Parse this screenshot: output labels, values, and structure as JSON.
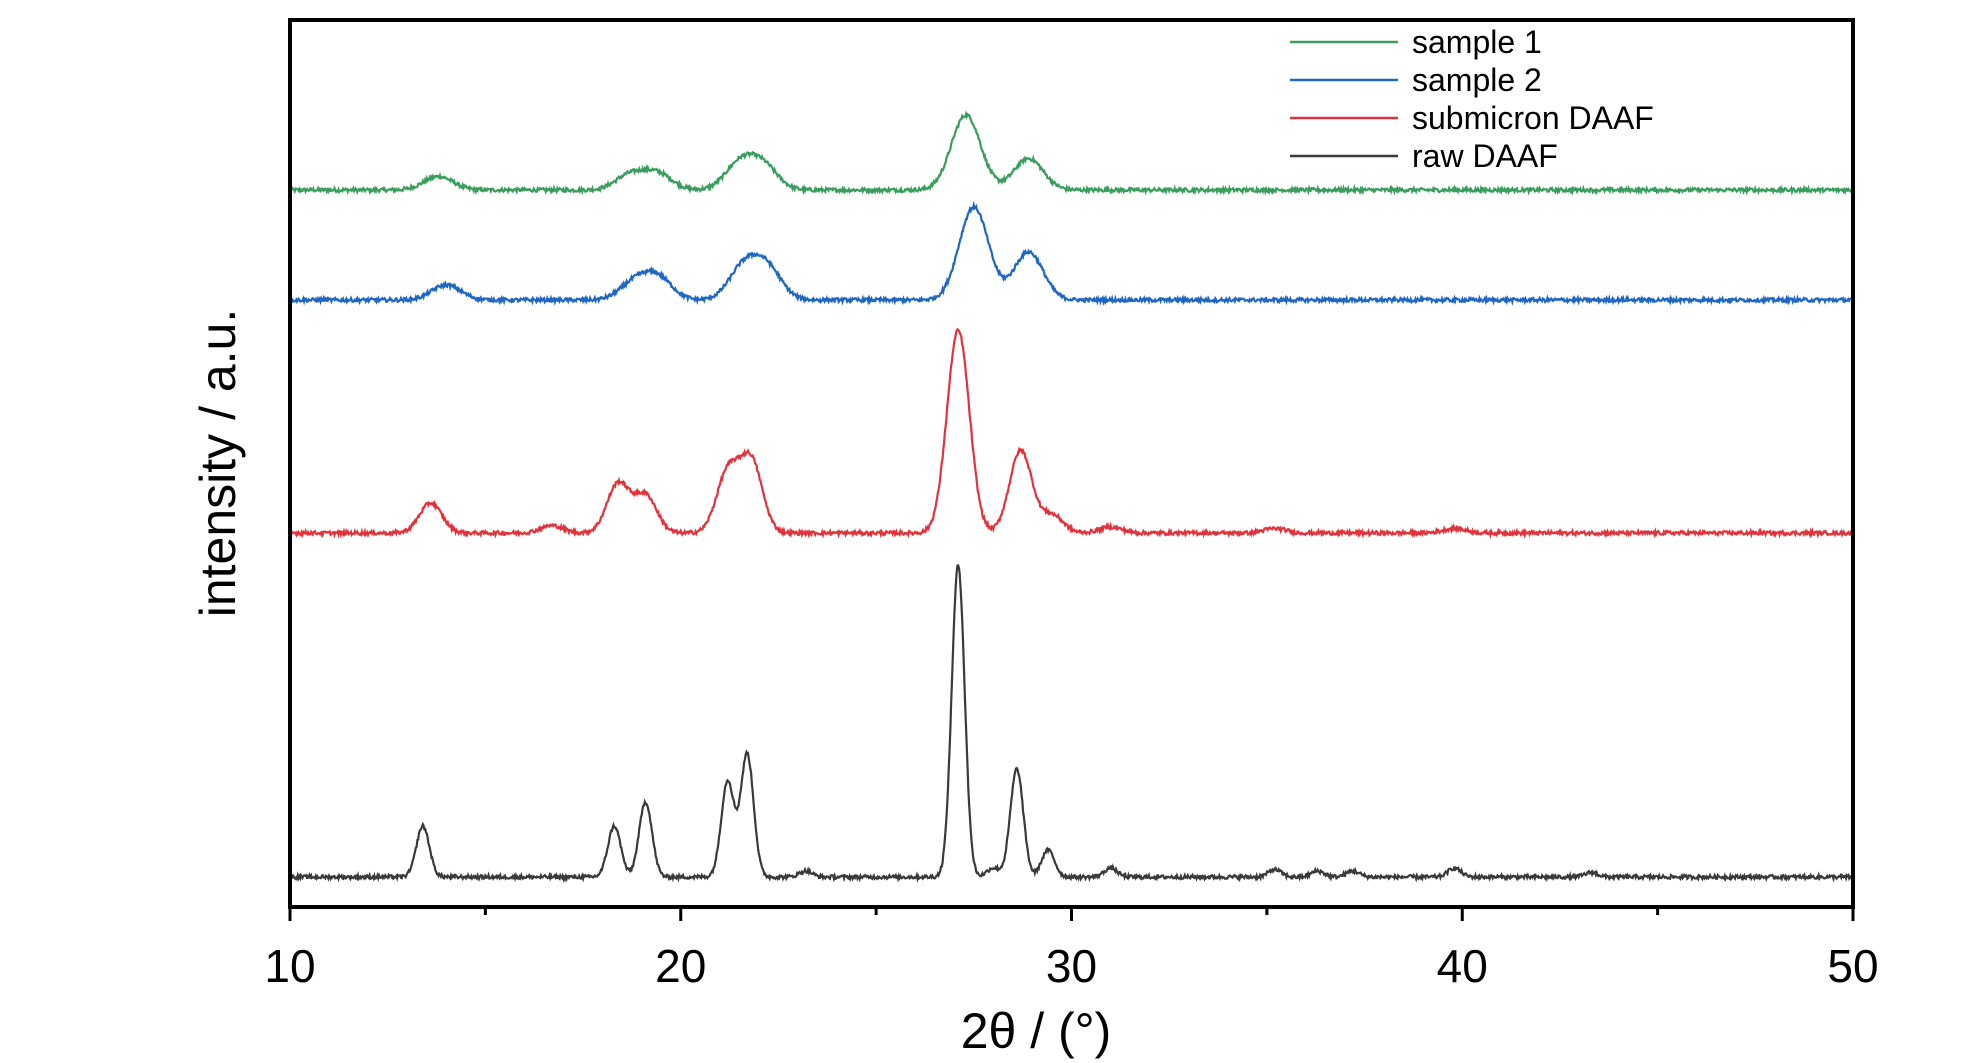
{
  "chart_data": {
    "type": "line",
    "xlabel": "2θ / (°)",
    "ylabel": "intensity / a.u.",
    "xlim": [
      10,
      50
    ],
    "x_ticks": [
      10,
      20,
      30,
      40,
      50
    ],
    "x_minor_ticks": [
      15,
      25,
      35,
      45
    ],
    "y_ticks": [],
    "grid": false,
    "legend_position": "top-right",
    "series": [
      {
        "name": "sample 1",
        "color": "#3a9d5d",
        "peaks": [
          [
            13.8,
            0.09
          ],
          [
            18.7,
            0.1
          ],
          [
            19.4,
            0.11
          ],
          [
            21.5,
            0.17
          ],
          [
            22.1,
            0.16
          ],
          [
            27.3,
            0.5
          ],
          [
            28.9,
            0.21
          ]
        ]
      },
      {
        "name": "sample 2",
        "color": "#1f67c2",
        "peaks": [
          [
            14.0,
            0.1
          ],
          [
            18.8,
            0.11
          ],
          [
            19.4,
            0.15
          ],
          [
            21.6,
            0.21
          ],
          [
            22.2,
            0.21
          ],
          [
            27.5,
            0.62
          ],
          [
            28.9,
            0.32
          ]
        ]
      },
      {
        "name": "submicron DAAF",
        "color": "#e0333c",
        "peaks": [
          [
            13.6,
            0.2
          ],
          [
            16.7,
            0.05
          ],
          [
            18.4,
            0.33
          ],
          [
            19.1,
            0.25
          ],
          [
            21.2,
            0.4
          ],
          [
            21.8,
            0.48
          ],
          [
            27.1,
            1.35
          ],
          [
            28.7,
            0.55
          ],
          [
            29.5,
            0.12
          ],
          [
            31.0,
            0.04
          ],
          [
            35.2,
            0.03
          ],
          [
            39.8,
            0.03
          ]
        ]
      },
      {
        "name": "raw DAAF",
        "color": "#3a3a3a",
        "peaks": [
          [
            13.4,
            0.34
          ],
          [
            18.3,
            0.34
          ],
          [
            19.1,
            0.5
          ],
          [
            21.2,
            0.64
          ],
          [
            21.7,
            0.82
          ],
          [
            23.2,
            0.04
          ],
          [
            27.1,
            2.08
          ],
          [
            28.0,
            0.06
          ],
          [
            28.6,
            0.72
          ],
          [
            29.4,
            0.18
          ],
          [
            31.0,
            0.06
          ],
          [
            35.2,
            0.05
          ],
          [
            36.3,
            0.04
          ],
          [
            37.2,
            0.04
          ],
          [
            39.8,
            0.06
          ],
          [
            43.3,
            0.03
          ]
        ]
      }
    ]
  }
}
